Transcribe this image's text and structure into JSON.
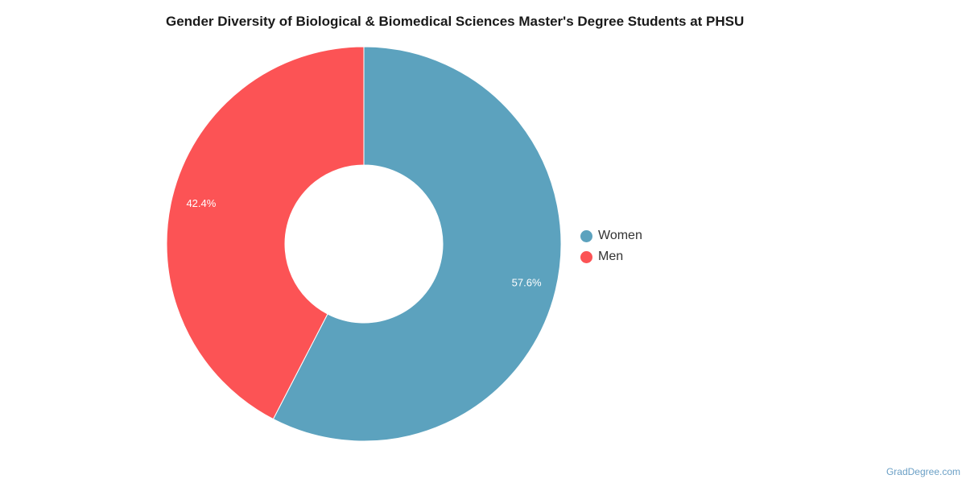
{
  "chart_data": {
    "type": "pie",
    "title": "Gender Diversity of Biological & Biomedical Sciences Master's Degree Students at PHSU",
    "categories": [
      "Women",
      "Men"
    ],
    "values": [
      57.6,
      42.4
    ],
    "labels": [
      "57.6%",
      "42.4%"
    ],
    "colors": [
      "#5ca2be",
      "#fc5355"
    ],
    "donut": true,
    "legend_position": "right"
  },
  "credit": "GradDegree.com"
}
